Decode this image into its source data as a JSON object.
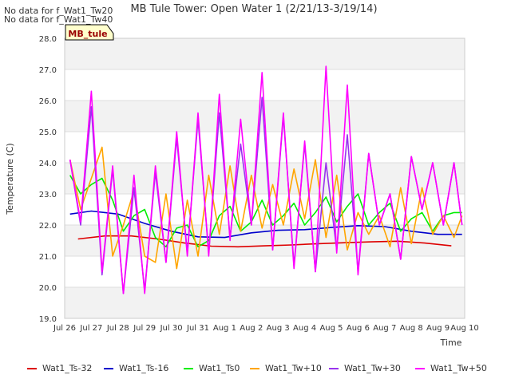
{
  "chart_data": {
    "type": "line",
    "title": "MB Tule Tower: Open Water 1 (2/21/13-3/19/14)",
    "xlabel": "Time",
    "ylabel": "Temperature (C)",
    "ylim": [
      19.0,
      28.0
    ],
    "yticks": [
      "19.0",
      "20.0",
      "21.0",
      "22.0",
      "23.0",
      "24.0",
      "25.0",
      "26.0",
      "27.0",
      "28.0"
    ],
    "xlim": [
      0,
      15
    ],
    "xticks": [
      "Jul 26",
      "Jul 27",
      "Jul 28",
      "Jul 29",
      "Jul 30",
      "Jul 31",
      "Aug 1",
      "Aug 2",
      "Aug 3",
      "Aug 4",
      "Aug 5",
      "Aug 6",
      "Aug 7",
      "Aug 8",
      "Aug 9",
      "Aug 10"
    ],
    "grid": true,
    "notes": [
      "No data for f_Wat1_Tw20",
      "No data for f_Wat1_Tw40"
    ],
    "site_label": "MB_tule",
    "legend_position": "bottom",
    "series": [
      {
        "name": "Wat1_Ts-32",
        "color": "#dd0000",
        "x": [
          0.5,
          1.5,
          2.5,
          3.5,
          4.5,
          5.5,
          6.5,
          7.5,
          8.5,
          9.5,
          10.5,
          11.5,
          12.5,
          13.5,
          14.5
        ],
        "y": [
          21.55,
          21.65,
          21.65,
          21.55,
          21.42,
          21.32,
          21.3,
          21.33,
          21.36,
          21.4,
          21.43,
          21.46,
          21.48,
          21.42,
          21.33
        ]
      },
      {
        "name": "Wat1_Ts-16",
        "color": "#0000cc",
        "x": [
          0.2,
          1.0,
          2.0,
          3.0,
          4.0,
          5.0,
          6.0,
          7.0,
          8.0,
          9.0,
          10.0,
          11.0,
          12.0,
          13.0,
          14.0,
          14.9
        ],
        "y": [
          22.35,
          22.45,
          22.35,
          22.05,
          21.8,
          21.62,
          21.6,
          21.75,
          21.83,
          21.85,
          21.92,
          21.98,
          21.95,
          21.8,
          21.7,
          21.7
        ]
      },
      {
        "name": "Wat1_Ts0",
        "color": "#00ee00",
        "x": [
          0.2,
          0.6,
          1.0,
          1.4,
          1.8,
          2.2,
          2.6,
          3.0,
          3.4,
          3.8,
          4.2,
          4.6,
          5.0,
          5.4,
          5.8,
          6.2,
          6.6,
          7.0,
          7.4,
          7.8,
          8.2,
          8.6,
          9.0,
          9.4,
          9.8,
          10.2,
          10.6,
          11.0,
          11.4,
          11.8,
          12.2,
          12.6,
          13.0,
          13.4,
          13.8,
          14.2,
          14.6,
          14.9
        ],
        "y": [
          23.6,
          23.0,
          23.3,
          23.5,
          22.8,
          21.8,
          22.3,
          22.5,
          21.6,
          21.3,
          21.9,
          22.0,
          21.3,
          21.5,
          22.3,
          22.6,
          21.8,
          22.1,
          22.8,
          22.0,
          22.3,
          22.7,
          22.0,
          22.4,
          22.9,
          22.1,
          22.6,
          23.0,
          22.0,
          22.4,
          22.7,
          21.8,
          22.2,
          22.4,
          21.8,
          22.3,
          22.4,
          22.4
        ]
      },
      {
        "name": "Wat1_Tw+10",
        "color": "#ffa500",
        "x": [
          0.2,
          0.6,
          1.0,
          1.4,
          1.8,
          2.2,
          2.6,
          3.0,
          3.4,
          3.8,
          4.2,
          4.6,
          5.0,
          5.4,
          5.8,
          6.2,
          6.6,
          7.0,
          7.4,
          7.8,
          8.2,
          8.6,
          9.0,
          9.4,
          9.8,
          10.2,
          10.6,
          11.0,
          11.4,
          11.8,
          12.2,
          12.6,
          13.0,
          13.4,
          13.8,
          14.2,
          14.6,
          14.9
        ],
        "y": [
          24.1,
          22.5,
          23.5,
          24.5,
          21.0,
          22.0,
          23.1,
          21.0,
          20.8,
          23.0,
          20.6,
          22.8,
          21.0,
          23.6,
          21.7,
          23.9,
          21.8,
          23.6,
          21.9,
          23.3,
          22.0,
          23.8,
          22.2,
          24.1,
          21.6,
          23.6,
          21.2,
          22.4,
          21.7,
          22.3,
          21.3,
          23.2,
          21.4,
          23.2,
          21.7,
          22.3,
          21.6,
          22.3
        ]
      },
      {
        "name": "Wat1_Tw+30",
        "color": "#9933ee",
        "x": [
          0.2,
          0.6,
          1.0,
          1.4,
          1.8,
          2.2,
          2.6,
          3.0,
          3.4,
          3.8,
          4.2,
          4.6,
          5.0,
          5.4,
          5.8,
          6.2,
          6.6,
          7.0,
          7.4,
          7.8,
          8.2,
          8.6,
          9.0,
          9.4,
          9.8,
          10.2,
          10.6,
          11.0,
          11.4,
          11.8,
          12.2,
          12.6,
          13.0,
          13.4,
          13.8,
          14.2,
          14.6,
          14.9
        ],
        "y": [
          24.1,
          22.0,
          25.8,
          20.4,
          23.8,
          19.8,
          23.2,
          19.9,
          23.7,
          20.8,
          24.8,
          21.1,
          25.4,
          21.1,
          25.6,
          21.6,
          24.6,
          22.0,
          26.1,
          21.2,
          25.5,
          20.7,
          24.6,
          20.5,
          24.0,
          21.2,
          24.9,
          20.5,
          24.3,
          22.0,
          23.0,
          20.9,
          24.2,
          22.5,
          24.0,
          22.0,
          24.0,
          22.0
        ]
      },
      {
        "name": "Wat1_Tw+50",
        "color": "#ff00ff",
        "x": [
          0.2,
          0.6,
          1.0,
          1.4,
          1.8,
          2.2,
          2.6,
          3.0,
          3.4,
          3.8,
          4.2,
          4.6,
          5.0,
          5.4,
          5.8,
          6.2,
          6.6,
          7.0,
          7.4,
          7.8,
          8.2,
          8.6,
          9.0,
          9.4,
          9.8,
          10.2,
          10.6,
          11.0,
          11.4,
          11.8,
          12.2,
          12.6,
          13.0,
          13.4,
          13.8,
          14.2,
          14.6,
          14.9
        ],
        "y": [
          24.1,
          22.1,
          26.3,
          20.5,
          23.9,
          19.8,
          23.6,
          19.8,
          23.9,
          20.8,
          25.0,
          21.0,
          25.6,
          21.0,
          26.2,
          21.5,
          25.4,
          22.0,
          26.9,
          21.2,
          25.6,
          20.6,
          24.7,
          20.5,
          27.1,
          21.1,
          26.5,
          20.4,
          24.3,
          22.0,
          23.0,
          20.9,
          24.2,
          22.5,
          24.0,
          22.0,
          24.0,
          22.0
        ]
      }
    ]
  }
}
